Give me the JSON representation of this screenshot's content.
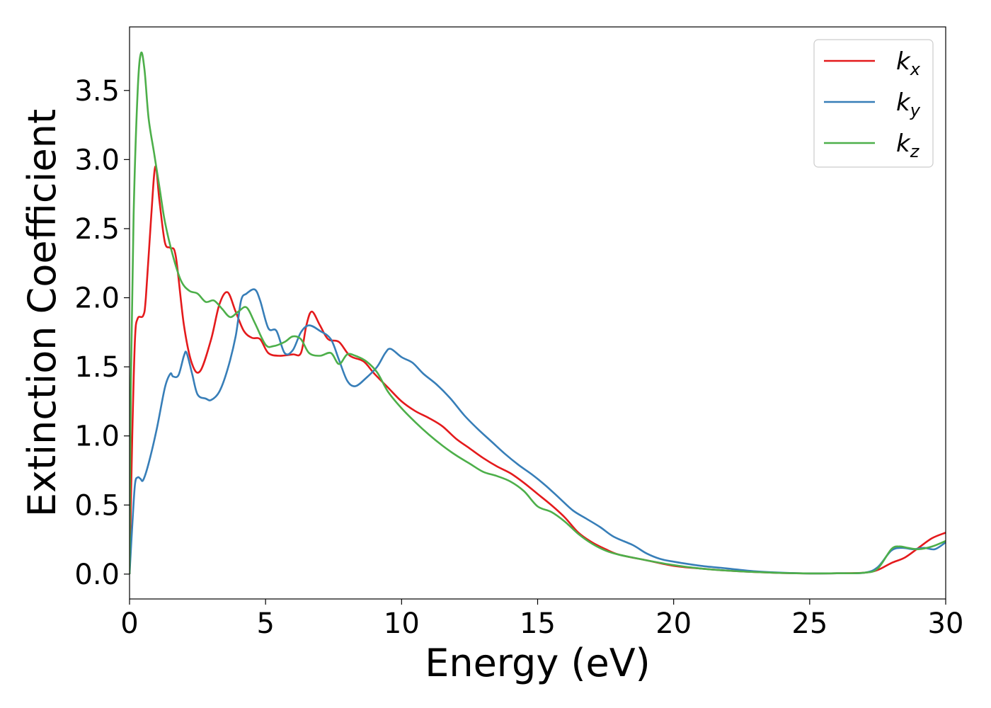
{
  "chart_data": {
    "type": "line",
    "xlabel": "Energy (eV)",
    "ylabel": "Extinction Coefficient",
    "xlim": [
      0,
      30
    ],
    "ylim": [
      -0.18,
      3.96
    ],
    "xticks": [
      0,
      5,
      10,
      15,
      20,
      25,
      30
    ],
    "xtick_labels": [
      "0",
      "5",
      "10",
      "15",
      "20",
      "25",
      "30"
    ],
    "yticks": [
      0.0,
      0.5,
      1.0,
      1.5,
      2.0,
      2.5,
      3.0,
      3.5
    ],
    "ytick_labels": [
      "0.0",
      "0.5",
      "1.0",
      "1.5",
      "2.0",
      "2.5",
      "3.0",
      "3.5"
    ],
    "grid": false,
    "legend_position": "top-right",
    "series": [
      {
        "name": "k",
        "subscript": "x",
        "color": "#e41a1c",
        "points": [
          [
            0,
            0
          ],
          [
            0.1,
            1.0
          ],
          [
            0.2,
            1.7
          ],
          [
            0.3,
            1.85
          ],
          [
            0.5,
            1.87
          ],
          [
            0.6,
            2.0
          ],
          [
            0.8,
            2.6
          ],
          [
            0.95,
            2.95
          ],
          [
            1.1,
            2.7
          ],
          [
            1.3,
            2.4
          ],
          [
            1.5,
            2.36
          ],
          [
            1.7,
            2.3
          ],
          [
            2.0,
            1.8
          ],
          [
            2.3,
            1.52
          ],
          [
            2.6,
            1.47
          ],
          [
            3.0,
            1.7
          ],
          [
            3.3,
            1.95
          ],
          [
            3.6,
            2.04
          ],
          [
            3.9,
            1.9
          ],
          [
            4.2,
            1.76
          ],
          [
            4.5,
            1.71
          ],
          [
            4.8,
            1.7
          ],
          [
            5.1,
            1.6
          ],
          [
            5.5,
            1.58
          ],
          [
            6.0,
            1.59
          ],
          [
            6.3,
            1.6
          ],
          [
            6.5,
            1.8
          ],
          [
            6.7,
            1.9
          ],
          [
            7.0,
            1.8
          ],
          [
            7.3,
            1.7
          ],
          [
            7.7,
            1.68
          ],
          [
            8.1,
            1.58
          ],
          [
            8.6,
            1.54
          ],
          [
            9.0,
            1.45
          ],
          [
            9.5,
            1.35
          ],
          [
            10.0,
            1.25
          ],
          [
            10.5,
            1.18
          ],
          [
            11.0,
            1.13
          ],
          [
            11.5,
            1.07
          ],
          [
            12.0,
            0.98
          ],
          [
            12.5,
            0.91
          ],
          [
            13.0,
            0.84
          ],
          [
            13.5,
            0.78
          ],
          [
            14.0,
            0.73
          ],
          [
            14.5,
            0.66
          ],
          [
            15.0,
            0.58
          ],
          [
            15.5,
            0.5
          ],
          [
            16.0,
            0.41
          ],
          [
            16.5,
            0.3
          ],
          [
            17.0,
            0.23
          ],
          [
            17.5,
            0.18
          ],
          [
            18.0,
            0.14
          ],
          [
            19.0,
            0.1
          ],
          [
            20.0,
            0.06
          ],
          [
            21.0,
            0.04
          ],
          [
            22.0,
            0.025
          ],
          [
            23.0,
            0.015
          ],
          [
            24.0,
            0.008
          ],
          [
            25.0,
            0.005
          ],
          [
            26.0,
            0.006
          ],
          [
            27.0,
            0.01
          ],
          [
            27.5,
            0.03
          ],
          [
            28.0,
            0.08
          ],
          [
            28.5,
            0.12
          ],
          [
            29.0,
            0.19
          ],
          [
            29.5,
            0.26
          ],
          [
            30.0,
            0.3
          ]
        ]
      },
      {
        "name": "k",
        "subscript": "y",
        "color": "#377eb8",
        "points": [
          [
            0,
            0
          ],
          [
            0.1,
            0.35
          ],
          [
            0.2,
            0.65
          ],
          [
            0.3,
            0.7
          ],
          [
            0.4,
            0.69
          ],
          [
            0.5,
            0.68
          ],
          [
            0.7,
            0.8
          ],
          [
            1.0,
            1.05
          ],
          [
            1.3,
            1.35
          ],
          [
            1.5,
            1.45
          ],
          [
            1.6,
            1.43
          ],
          [
            1.8,
            1.44
          ],
          [
            2.0,
            1.58
          ],
          [
            2.1,
            1.6
          ],
          [
            2.3,
            1.45
          ],
          [
            2.5,
            1.3
          ],
          [
            2.8,
            1.27
          ],
          [
            3.0,
            1.26
          ],
          [
            3.3,
            1.32
          ],
          [
            3.6,
            1.48
          ],
          [
            3.9,
            1.72
          ],
          [
            4.1,
            1.98
          ],
          [
            4.3,
            2.03
          ],
          [
            4.6,
            2.06
          ],
          [
            4.8,
            1.98
          ],
          [
            5.1,
            1.78
          ],
          [
            5.4,
            1.76
          ],
          [
            5.7,
            1.6
          ],
          [
            6.0,
            1.62
          ],
          [
            6.3,
            1.75
          ],
          [
            6.6,
            1.8
          ],
          [
            7.0,
            1.76
          ],
          [
            7.4,
            1.7
          ],
          [
            7.7,
            1.55
          ],
          [
            8.0,
            1.4
          ],
          [
            8.3,
            1.36
          ],
          [
            8.7,
            1.42
          ],
          [
            9.1,
            1.5
          ],
          [
            9.4,
            1.6
          ],
          [
            9.6,
            1.63
          ],
          [
            10.0,
            1.57
          ],
          [
            10.4,
            1.53
          ],
          [
            10.8,
            1.45
          ],
          [
            11.3,
            1.37
          ],
          [
            11.8,
            1.27
          ],
          [
            12.3,
            1.15
          ],
          [
            12.8,
            1.05
          ],
          [
            13.3,
            0.96
          ],
          [
            13.8,
            0.87
          ],
          [
            14.3,
            0.79
          ],
          [
            14.8,
            0.72
          ],
          [
            15.3,
            0.64
          ],
          [
            15.8,
            0.55
          ],
          [
            16.3,
            0.46
          ],
          [
            16.8,
            0.4
          ],
          [
            17.3,
            0.34
          ],
          [
            17.8,
            0.27
          ],
          [
            18.5,
            0.21
          ],
          [
            19.0,
            0.15
          ],
          [
            19.5,
            0.11
          ],
          [
            20.0,
            0.09
          ],
          [
            21.0,
            0.06
          ],
          [
            22.0,
            0.04
          ],
          [
            23.0,
            0.02
          ],
          [
            24.0,
            0.01
          ],
          [
            25.0,
            0.005
          ],
          [
            26.0,
            0.006
          ],
          [
            27.0,
            0.01
          ],
          [
            27.5,
            0.05
          ],
          [
            28.0,
            0.17
          ],
          [
            28.4,
            0.19
          ],
          [
            28.8,
            0.18
          ],
          [
            29.2,
            0.19
          ],
          [
            29.6,
            0.18
          ],
          [
            30.0,
            0.23
          ]
        ]
      },
      {
        "name": "k",
        "subscript": "z",
        "color": "#4daf4a",
        "points": [
          [
            0,
            0
          ],
          [
            0.05,
            1.4
          ],
          [
            0.15,
            2.6
          ],
          [
            0.3,
            3.5
          ],
          [
            0.42,
            3.77
          ],
          [
            0.55,
            3.65
          ],
          [
            0.7,
            3.3
          ],
          [
            0.9,
            3.05
          ],
          [
            1.1,
            2.8
          ],
          [
            1.3,
            2.55
          ],
          [
            1.6,
            2.3
          ],
          [
            1.9,
            2.12
          ],
          [
            2.2,
            2.05
          ],
          [
            2.5,
            2.03
          ],
          [
            2.8,
            1.97
          ],
          [
            3.1,
            1.98
          ],
          [
            3.4,
            1.92
          ],
          [
            3.7,
            1.86
          ],
          [
            4.0,
            1.9
          ],
          [
            4.3,
            1.93
          ],
          [
            4.6,
            1.82
          ],
          [
            5.0,
            1.66
          ],
          [
            5.3,
            1.65
          ],
          [
            5.7,
            1.68
          ],
          [
            6.0,
            1.72
          ],
          [
            6.3,
            1.7
          ],
          [
            6.6,
            1.6
          ],
          [
            7.0,
            1.58
          ],
          [
            7.4,
            1.6
          ],
          [
            7.7,
            1.52
          ],
          [
            8.0,
            1.59
          ],
          [
            8.3,
            1.58
          ],
          [
            8.7,
            1.54
          ],
          [
            9.1,
            1.46
          ],
          [
            9.5,
            1.32
          ],
          [
            10.0,
            1.2
          ],
          [
            10.5,
            1.1
          ],
          [
            11.0,
            1.01
          ],
          [
            11.5,
            0.93
          ],
          [
            12.0,
            0.86
          ],
          [
            12.5,
            0.8
          ],
          [
            13.0,
            0.74
          ],
          [
            13.5,
            0.71
          ],
          [
            14.0,
            0.67
          ],
          [
            14.5,
            0.6
          ],
          [
            15.0,
            0.49
          ],
          [
            15.5,
            0.45
          ],
          [
            16.0,
            0.38
          ],
          [
            16.5,
            0.29
          ],
          [
            17.0,
            0.22
          ],
          [
            17.5,
            0.17
          ],
          [
            18.0,
            0.14
          ],
          [
            19.0,
            0.1
          ],
          [
            20.0,
            0.065
          ],
          [
            21.0,
            0.04
          ],
          [
            22.0,
            0.025
          ],
          [
            23.0,
            0.015
          ],
          [
            24.0,
            0.008
          ],
          [
            25.0,
            0.005
          ],
          [
            26.0,
            0.006
          ],
          [
            27.0,
            0.01
          ],
          [
            27.5,
            0.04
          ],
          [
            28.0,
            0.18
          ],
          [
            28.3,
            0.2
          ],
          [
            28.6,
            0.19
          ],
          [
            29.0,
            0.18
          ],
          [
            29.5,
            0.2
          ],
          [
            30.0,
            0.24
          ]
        ]
      }
    ]
  }
}
